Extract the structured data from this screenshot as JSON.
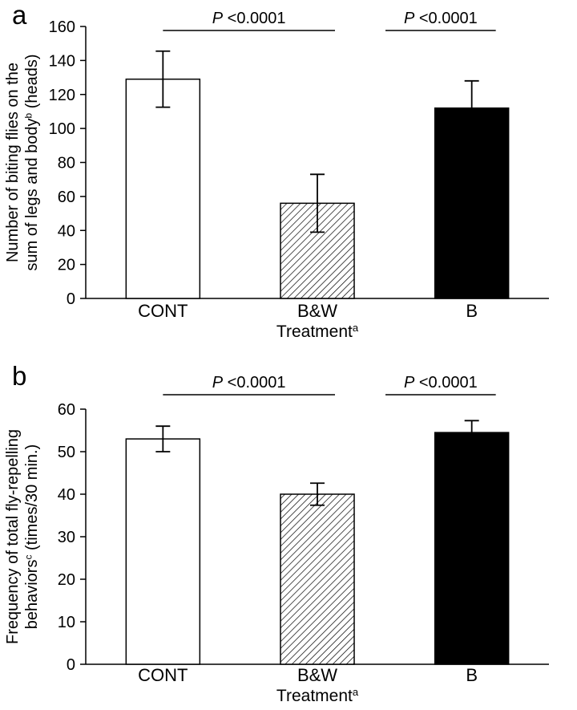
{
  "figure": {
    "background": "#ffffff",
    "ink": "#000000",
    "bar_fill": {
      "white": "#ffffff",
      "black": "#000000"
    }
  },
  "panels": [
    {
      "letter": "a"
    },
    {
      "letter": "b"
    }
  ],
  "chart_data": [
    {
      "type": "bar",
      "panel": "a",
      "title": "",
      "categories": [
        "CONT",
        "B&W",
        "B"
      ],
      "values": [
        129,
        56,
        112
      ],
      "errors": [
        16.5,
        17,
        16
      ],
      "bar_styles": [
        "white",
        "hatched",
        "black"
      ],
      "xlabel": "Treatment^a",
      "ylabel_lines": [
        "Number of biting flies on the",
        "sum of legs and body^b (heads)"
      ],
      "ylim": [
        0,
        160
      ],
      "ytick_step": 20,
      "grid": false,
      "legend": "none",
      "significance": [
        {
          "from": 0,
          "to": 1,
          "p": "P",
          "text": " <0.0001",
          "dx1": 0,
          "dx2": 22
        },
        {
          "from": 1,
          "to": 2,
          "p": "P",
          "text": " <0.0001",
          "dx1": 85,
          "dx2": 30
        }
      ]
    },
    {
      "type": "bar",
      "panel": "b",
      "title": "",
      "categories": [
        "CONT",
        "B&W",
        "B"
      ],
      "values": [
        53,
        40,
        54.5
      ],
      "errors": [
        3,
        2.6,
        2.8
      ],
      "bar_styles": [
        "white",
        "hatched",
        "black"
      ],
      "xlabel": "Treatment^a",
      "ylabel_lines": [
        "Frequency of total fly-repelling",
        "behaviors^c (times/30 min.)"
      ],
      "ylim": [
        0,
        60
      ],
      "ytick_step": 10,
      "grid": false,
      "legend": "none",
      "significance": [
        {
          "from": 0,
          "to": 1,
          "p": "P",
          "text": " <0.0001",
          "dx1": 0,
          "dx2": 22
        },
        {
          "from": 1,
          "to": 2,
          "p": "P",
          "text": " <0.0001",
          "dx1": 85,
          "dx2": 30
        }
      ]
    }
  ]
}
